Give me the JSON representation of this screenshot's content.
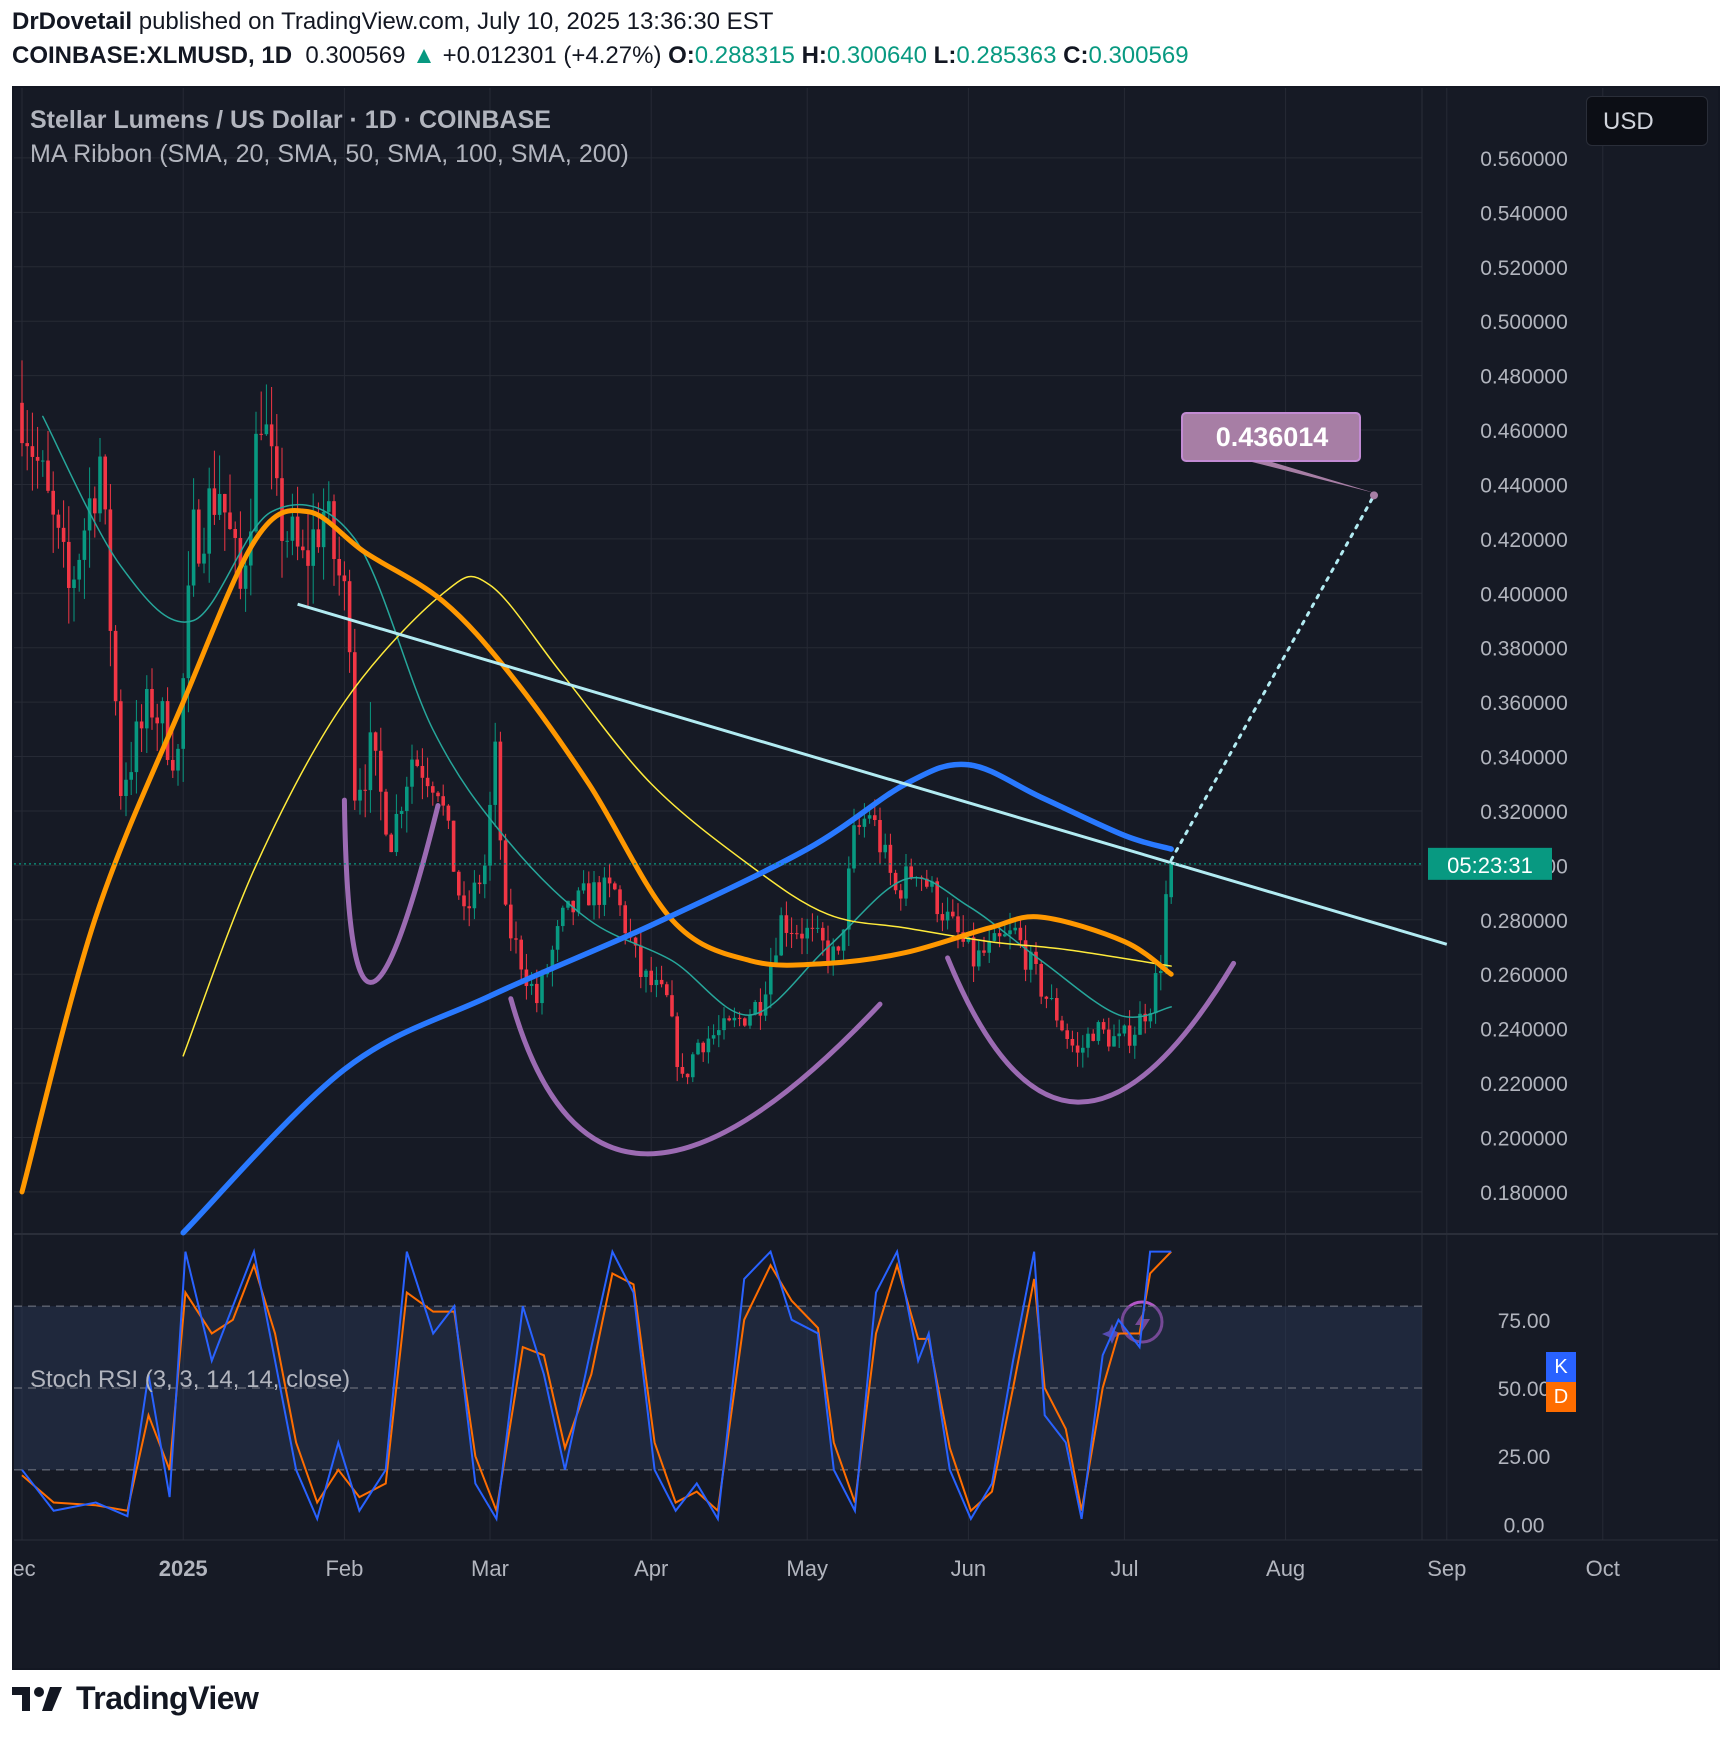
{
  "header": {
    "author": "DrDovetail",
    "published_text": "published on TradingView.com, July 10, 2025 13:36:30 EST",
    "symbol": "COINBASE:XLMUSD, 1D",
    "last": "0.300569",
    "change": "+0.012301 (+4.27%)",
    "o_label": "O:",
    "o_value": "0.288315",
    "h_label": "H:",
    "h_value": "0.300640",
    "l_label": "L:",
    "l_value": "0.285363",
    "c_label": "C:",
    "c_value": "0.300569"
  },
  "legend": {
    "title": "Stellar Lumens / US Dollar · 1D · COINBASE",
    "ma_ribbon": "MA Ribbon (SMA, 20, SMA, 50, SMA, 100, SMA, 200)",
    "stoch": "Stoch RSI (3, 3, 14, 14, close)"
  },
  "currency_button": "USD",
  "countdown": "05:23:31",
  "target_label": "0.436014",
  "k_badge": "K",
  "d_badge": "D",
  "footer_brand": "TradingView",
  "colors": {
    "up": "#089981",
    "down": "#f23645",
    "sma20": "#26a69a",
    "sma50": "#ffeb3b",
    "sma100": "#ff9800",
    "sma200": "#2979ff",
    "trendline": "#b2ebf2",
    "cups": "#9c6bb3",
    "target": "#a77ea5",
    "stoch_k": "#2962ff",
    "stoch_d": "#ff6d00"
  },
  "chart_data": {
    "type": "candlestick",
    "title": "Stellar Lumens / US Dollar · 1D · COINBASE",
    "x_ticks": [
      "ec",
      "2025",
      "Feb",
      "Mar",
      "Apr",
      "May",
      "Jun",
      "Jul",
      "Aug",
      "Sep",
      "Oct"
    ],
    "y_ticks": [
      "0.560000",
      "0.540000",
      "0.520000",
      "0.500000",
      "0.480000",
      "0.460000",
      "0.440000",
      "0.420000",
      "0.400000",
      "0.380000",
      "0.360000",
      "0.340000",
      "0.320000",
      "0.300000",
      "0.280000",
      "0.260000",
      "0.240000",
      "0.220000",
      "0.200000",
      "0.180000"
    ],
    "ylim": [
      0.166,
      0.571
    ],
    "grid": true,
    "last_price": 0.300569,
    "target": 0.436014,
    "anchors": [
      [
        "2024-12-01",
        0.47
      ],
      [
        "2024-12-05",
        0.44
      ],
      [
        "2024-12-10",
        0.4
      ],
      [
        "2024-12-16",
        0.45
      ],
      [
        "2024-12-20",
        0.33
      ],
      [
        "2024-12-26",
        0.36
      ],
      [
        "2024-12-31",
        0.34
      ],
      [
        "2025-01-03",
        0.42
      ],
      [
        "2025-01-08",
        0.44
      ],
      [
        "2025-01-12",
        0.4
      ],
      [
        "2025-01-16",
        0.47
      ],
      [
        "2025-01-19",
        0.43
      ],
      [
        "2025-01-24",
        0.41
      ],
      [
        "2025-01-28",
        0.43
      ],
      [
        "2025-02-02",
        0.39
      ],
      [
        "2025-02-03",
        0.33
      ],
      [
        "2025-02-06",
        0.34
      ],
      [
        "2025-02-10",
        0.31
      ],
      [
        "2025-02-14",
        0.34
      ],
      [
        "2025-02-19",
        0.33
      ],
      [
        "2025-02-24",
        0.28
      ],
      [
        "2025-02-28",
        0.3
      ],
      [
        "2025-03-02",
        0.34
      ],
      [
        "2025-03-04",
        0.28
      ],
      [
        "2025-03-10",
        0.25
      ],
      [
        "2025-03-15",
        0.28
      ],
      [
        "2025-03-20",
        0.29
      ],
      [
        "2025-03-25",
        0.29
      ],
      [
        "2025-03-30",
        0.26
      ],
      [
        "2025-04-04",
        0.25
      ],
      [
        "2025-04-07",
        0.22
      ],
      [
        "2025-04-10",
        0.235
      ],
      [
        "2025-04-16",
        0.24
      ],
      [
        "2025-04-22",
        0.25
      ],
      [
        "2025-04-26",
        0.28
      ],
      [
        "2025-05-01",
        0.275
      ],
      [
        "2025-05-07",
        0.265
      ],
      [
        "2025-05-10",
        0.31
      ],
      [
        "2025-05-13",
        0.32
      ],
      [
        "2025-05-18",
        0.29
      ],
      [
        "2025-05-22",
        0.3
      ],
      [
        "2025-05-28",
        0.28
      ],
      [
        "2025-06-02",
        0.265
      ],
      [
        "2025-06-06",
        0.27
      ],
      [
        "2025-06-10",
        0.275
      ],
      [
        "2025-06-15",
        0.255
      ],
      [
        "2025-06-18",
        0.245
      ],
      [
        "2025-06-22",
        0.23
      ],
      [
        "2025-06-25",
        0.24
      ],
      [
        "2025-06-30",
        0.235
      ],
      [
        "2025-07-03",
        0.24
      ],
      [
        "2025-07-06",
        0.25
      ],
      [
        "2025-07-08",
        0.265
      ],
      [
        "2025-07-09",
        0.288
      ],
      [
        "2025-07-10",
        0.3006
      ]
    ],
    "series": [
      {
        "name": "SMA 20",
        "points": [
          [
            "2024-12-05",
            0.465
          ],
          [
            "2024-12-20",
            0.41
          ],
          [
            "2025-01-03",
            0.39
          ],
          [
            "2025-01-18",
            0.43
          ],
          [
            "2025-02-03",
            0.42
          ],
          [
            "2025-02-18",
            0.35
          ],
          [
            "2025-03-04",
            0.31
          ],
          [
            "2025-03-20",
            0.28
          ],
          [
            "2025-04-05",
            0.265
          ],
          [
            "2025-04-20",
            0.245
          ],
          [
            "2025-05-05",
            0.27
          ],
          [
            "2025-05-20",
            0.295
          ],
          [
            "2025-06-01",
            0.285
          ],
          [
            "2025-06-15",
            0.265
          ],
          [
            "2025-06-30",
            0.245
          ],
          [
            "2025-07-10",
            0.248
          ]
        ]
      },
      {
        "name": "SMA 50",
        "points": [
          [
            "2025-01-01",
            0.23
          ],
          [
            "2025-01-15",
            0.3
          ],
          [
            "2025-02-01",
            0.36
          ],
          [
            "2025-02-20",
            0.4
          ],
          [
            "2025-03-01",
            0.403
          ],
          [
            "2025-03-15",
            0.37
          ],
          [
            "2025-04-01",
            0.33
          ],
          [
            "2025-04-20",
            0.3
          ],
          [
            "2025-05-05",
            0.282
          ],
          [
            "2025-05-20",
            0.277
          ],
          [
            "2025-06-05",
            0.272
          ],
          [
            "2025-06-20",
            0.269
          ],
          [
            "2025-07-10",
            0.263
          ]
        ]
      },
      {
        "name": "SMA 100",
        "points": [
          [
            "2024-12-01",
            0.18
          ],
          [
            "2024-12-15",
            0.28
          ],
          [
            "2025-01-01",
            0.36
          ],
          [
            "2025-01-15",
            0.42
          ],
          [
            "2025-01-25",
            0.43
          ],
          [
            "2025-02-05",
            0.415
          ],
          [
            "2025-02-20",
            0.397
          ],
          [
            "2025-03-05",
            0.37
          ],
          [
            "2025-03-20",
            0.33
          ],
          [
            "2025-04-05",
            0.28
          ],
          [
            "2025-04-20",
            0.265
          ],
          [
            "2025-05-05",
            0.264
          ],
          [
            "2025-05-20",
            0.268
          ],
          [
            "2025-06-05",
            0.277
          ],
          [
            "2025-06-15",
            0.281
          ],
          [
            "2025-07-01",
            0.272
          ],
          [
            "2025-07-10",
            0.26
          ]
        ]
      },
      {
        "name": "SMA 200",
        "points": [
          [
            "2025-01-01",
            0.165
          ],
          [
            "2025-02-01",
            0.225
          ],
          [
            "2025-03-01",
            0.252
          ],
          [
            "2025-04-01",
            0.278
          ],
          [
            "2025-05-01",
            0.306
          ],
          [
            "2025-05-20",
            0.33
          ],
          [
            "2025-06-01",
            0.337
          ],
          [
            "2025-06-15",
            0.325
          ],
          [
            "2025-07-01",
            0.311
          ],
          [
            "2025-07-10",
            0.306
          ]
        ]
      }
    ],
    "trendline": [
      [
        "2025-01-23",
        0.396
      ],
      [
        "2025-09-01",
        0.271
      ]
    ],
    "projection": [
      [
        "2025-07-10",
        0.302
      ],
      [
        "2025-08-18",
        0.436
      ]
    ],
    "cups": [
      {
        "from": [
          "2025-02-01",
          0.324
        ],
        "via": [
          "2025-02-06",
          0.257
        ],
        "to": [
          "2025-02-19",
          0.322
        ]
      },
      {
        "from": [
          "2025-03-05",
          0.251
        ],
        "via": [
          "2025-03-31",
          0.194
        ],
        "to": [
          "2025-05-15",
          0.249
        ]
      },
      {
        "from": [
          "2025-05-28",
          0.266
        ],
        "via": [
          "2025-06-22",
          0.213
        ],
        "to": [
          "2025-07-22",
          0.264
        ]
      }
    ]
  },
  "stoch_chart_data": {
    "type": "line",
    "title": "Stoch RSI (3, 3, 14, 14, close)",
    "y_ticks": [
      "75.00",
      "50.00",
      "25.00",
      "0.00"
    ],
    "ylim": [
      -5,
      105
    ],
    "bands": [
      80,
      20
    ],
    "k": [
      [
        0,
        20
      ],
      [
        6,
        5
      ],
      [
        14,
        8
      ],
      [
        20,
        3
      ],
      [
        24,
        55
      ],
      [
        28,
        10
      ],
      [
        31,
        100
      ],
      [
        36,
        60
      ],
      [
        40,
        80
      ],
      [
        44,
        100
      ],
      [
        48,
        60
      ],
      [
        52,
        20
      ],
      [
        56,
        2
      ],
      [
        60,
        30
      ],
      [
        64,
        5
      ],
      [
        69,
        20
      ],
      [
        73,
        100
      ],
      [
        78,
        70
      ],
      [
        82,
        80
      ],
      [
        86,
        15
      ],
      [
        90,
        2
      ],
      [
        95,
        80
      ],
      [
        99,
        55
      ],
      [
        103,
        20
      ],
      [
        108,
        65
      ],
      [
        112,
        100
      ],
      [
        116,
        85
      ],
      [
        120,
        20
      ],
      [
        124,
        5
      ],
      [
        128,
        15
      ],
      [
        132,
        2
      ],
      [
        137,
        90
      ],
      [
        142,
        100
      ],
      [
        146,
        75
      ],
      [
        151,
        70
      ],
      [
        154,
        20
      ],
      [
        158,
        5
      ],
      [
        162,
        85
      ],
      [
        166,
        100
      ],
      [
        170,
        60
      ],
      [
        172,
        70
      ],
      [
        176,
        20
      ],
      [
        180,
        2
      ],
      [
        184,
        15
      ],
      [
        188,
        60
      ],
      [
        192,
        100
      ],
      [
        194,
        40
      ],
      [
        198,
        30
      ],
      [
        201,
        2
      ],
      [
        205,
        62
      ],
      [
        208,
        75
      ],
      [
        212,
        65
      ],
      [
        214,
        100
      ],
      [
        218,
        100
      ]
    ],
    "d": [
      [
        0,
        18
      ],
      [
        6,
        8
      ],
      [
        14,
        7
      ],
      [
        20,
        5
      ],
      [
        24,
        40
      ],
      [
        28,
        20
      ],
      [
        31,
        85
      ],
      [
        36,
        70
      ],
      [
        40,
        75
      ],
      [
        44,
        95
      ],
      [
        48,
        70
      ],
      [
        52,
        30
      ],
      [
        56,
        8
      ],
      [
        60,
        20
      ],
      [
        64,
        10
      ],
      [
        69,
        15
      ],
      [
        73,
        85
      ],
      [
        78,
        78
      ],
      [
        82,
        78
      ],
      [
        86,
        25
      ],
      [
        90,
        5
      ],
      [
        95,
        65
      ],
      [
        99,
        62
      ],
      [
        103,
        28
      ],
      [
        108,
        55
      ],
      [
        112,
        92
      ],
      [
        116,
        88
      ],
      [
        120,
        30
      ],
      [
        124,
        8
      ],
      [
        128,
        12
      ],
      [
        132,
        5
      ],
      [
        137,
        75
      ],
      [
        142,
        95
      ],
      [
        146,
        82
      ],
      [
        151,
        72
      ],
      [
        154,
        30
      ],
      [
        158,
        8
      ],
      [
        162,
        70
      ],
      [
        166,
        95
      ],
      [
        170,
        68
      ],
      [
        172,
        68
      ],
      [
        176,
        28
      ],
      [
        180,
        5
      ],
      [
        184,
        12
      ],
      [
        188,
        50
      ],
      [
        192,
        90
      ],
      [
        194,
        50
      ],
      [
        198,
        35
      ],
      [
        201,
        5
      ],
      [
        205,
        50
      ],
      [
        208,
        70
      ],
      [
        212,
        70
      ],
      [
        214,
        92
      ],
      [
        218,
        100
      ]
    ]
  }
}
